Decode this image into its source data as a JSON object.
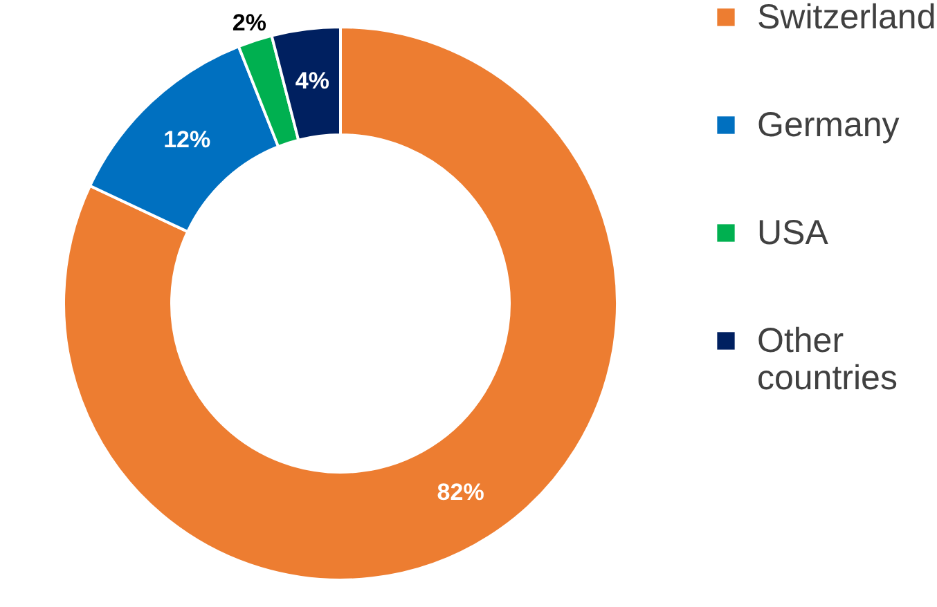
{
  "chart_data": {
    "type": "donut",
    "categories": [
      "Switzerland",
      "Germany",
      "USA",
      "Other countries"
    ],
    "values": [
      82,
      12,
      2,
      4
    ],
    "colors": [
      "#ed7d31",
      "#0070c0",
      "#00b050",
      "#002060"
    ],
    "value_labels": [
      "82%",
      "12%",
      "2%",
      "4%"
    ],
    "legend": "right"
  }
}
